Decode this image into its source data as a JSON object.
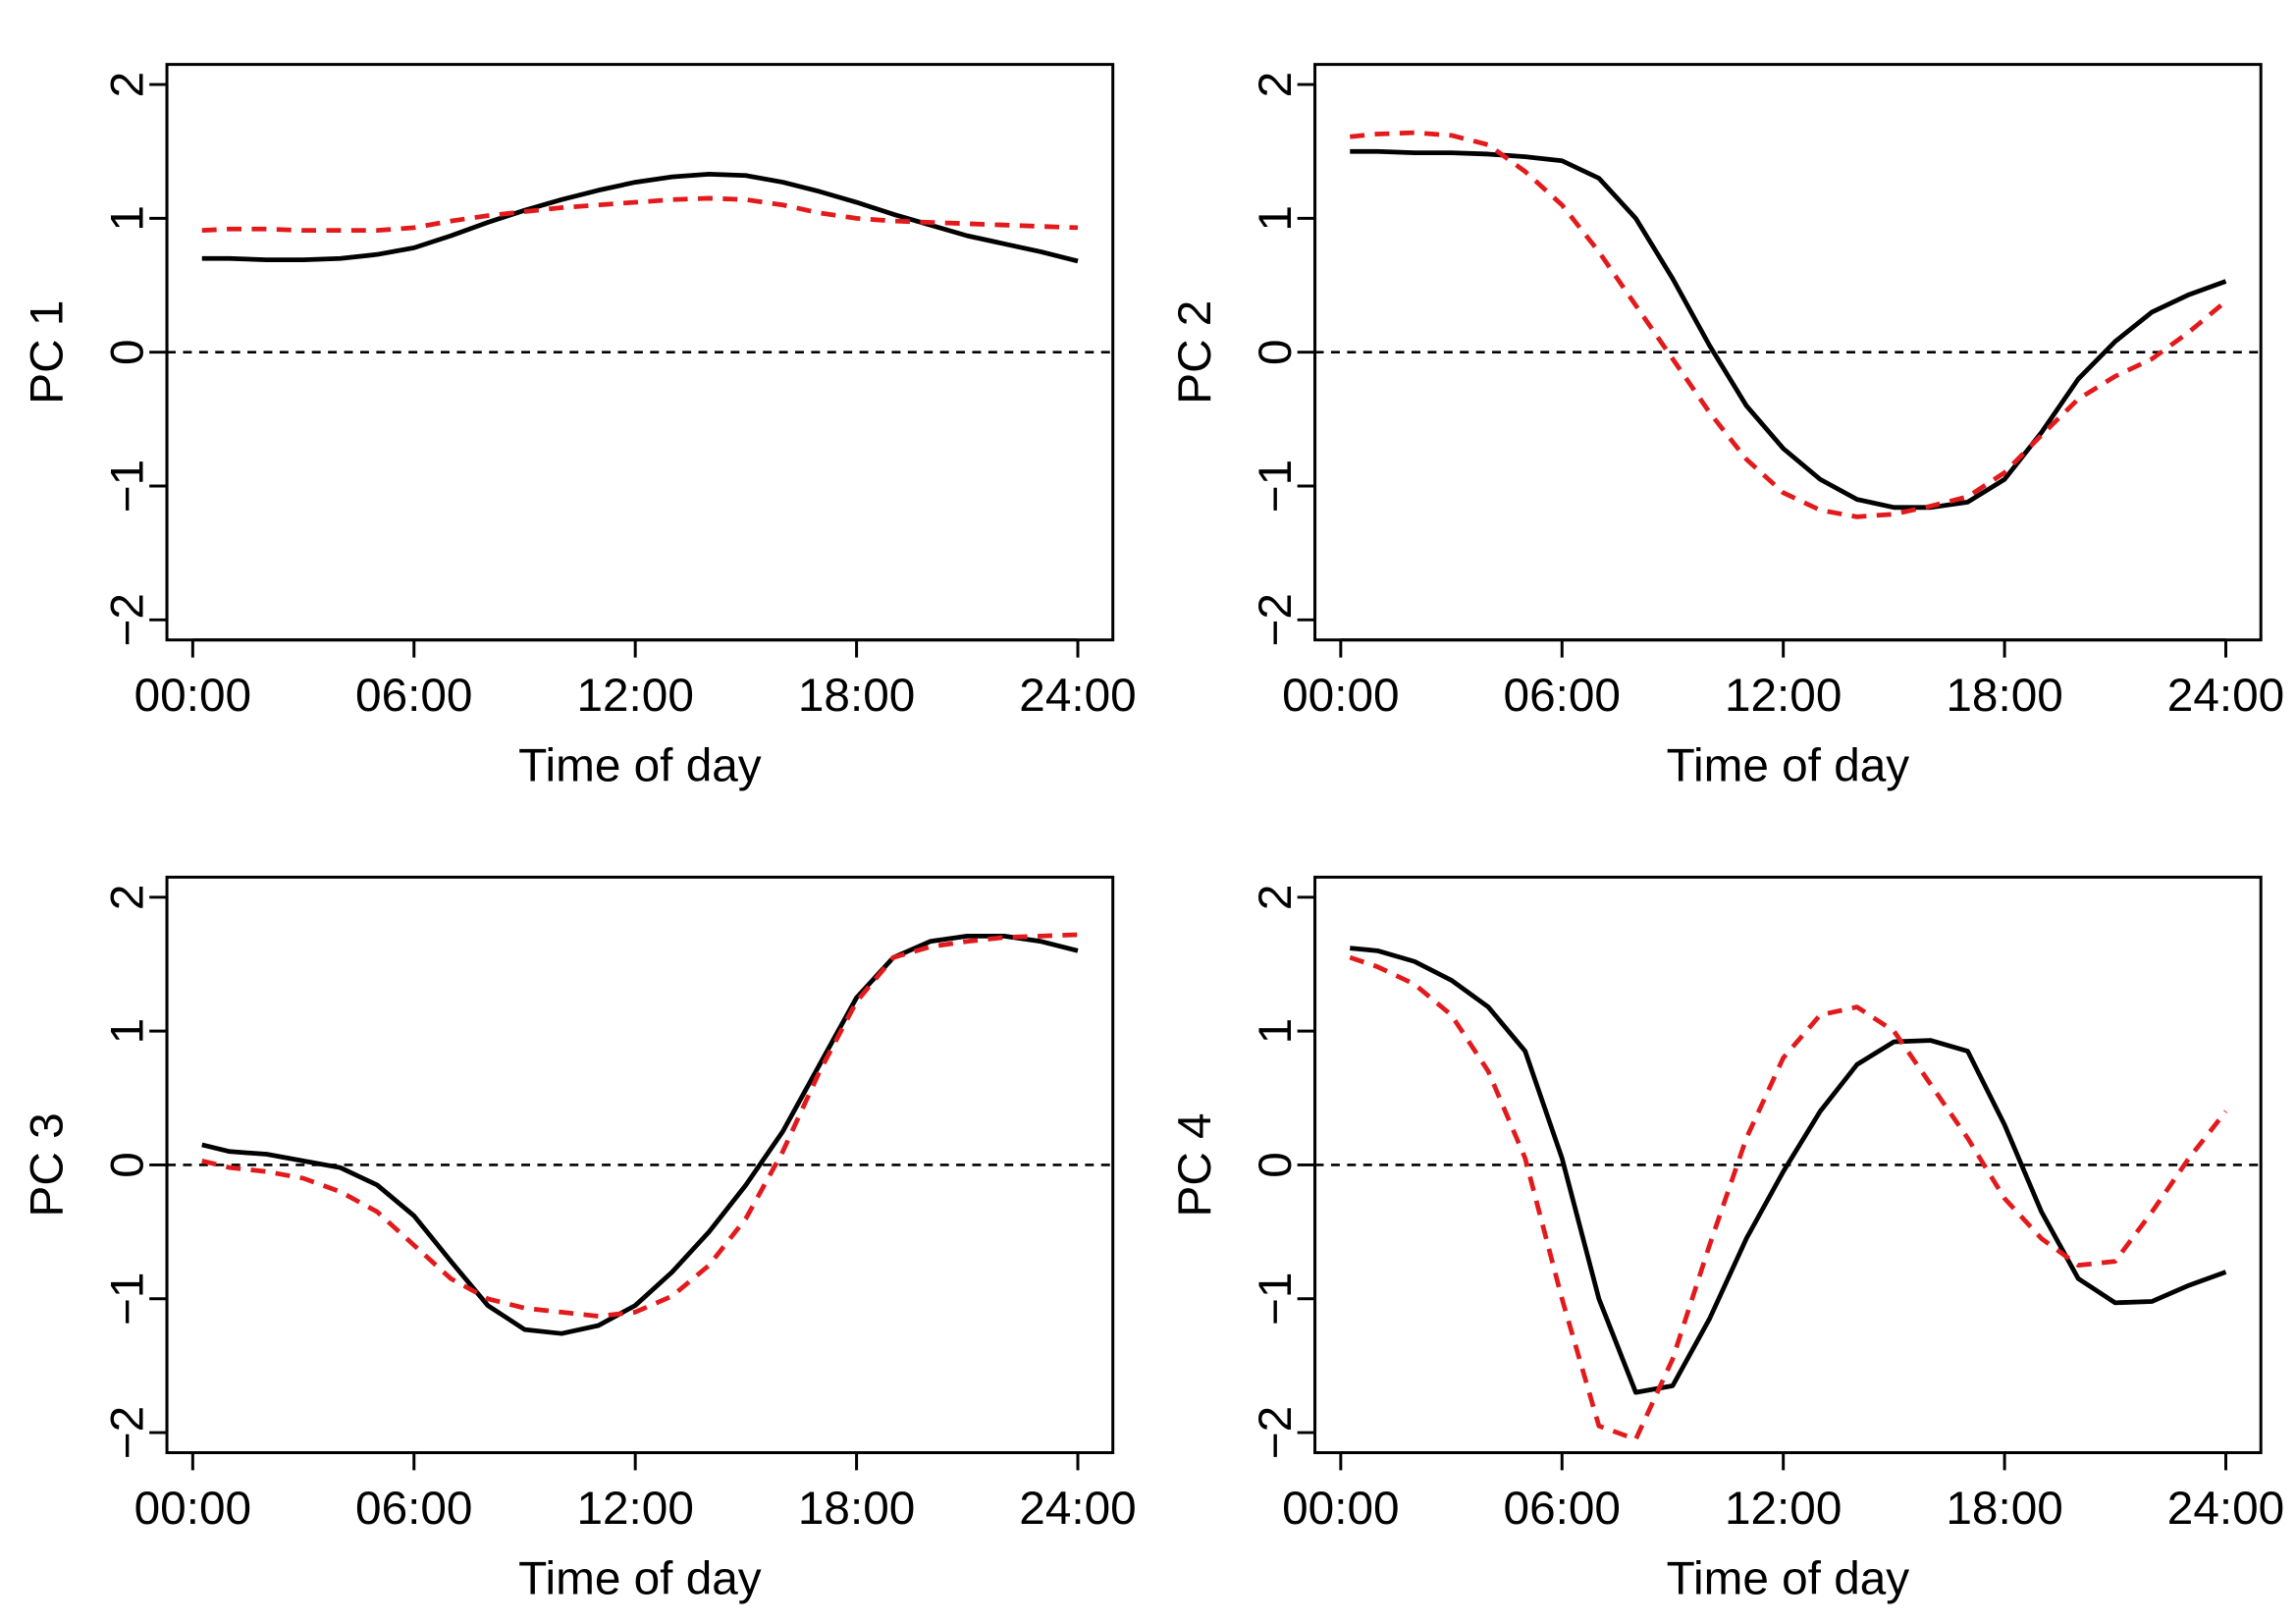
{
  "chart_data": [
    {
      "type": "line",
      "xlabel": "Time of day",
      "ylabel": "PC 1",
      "x": [
        0.25,
        1,
        2,
        3,
        4,
        5,
        6,
        7,
        8,
        9,
        10,
        11,
        12,
        13,
        14,
        15,
        16,
        17,
        18,
        19,
        20,
        21,
        22,
        23,
        24
      ],
      "series": [
        {
          "color": "#000000",
          "style": "solid",
          "values": [
            0.7,
            0.7,
            0.69,
            0.69,
            0.7,
            0.73,
            0.78,
            0.87,
            0.97,
            1.06,
            1.14,
            1.21,
            1.27,
            1.31,
            1.33,
            1.32,
            1.27,
            1.2,
            1.12,
            1.03,
            0.95,
            0.87,
            0.81,
            0.75,
            0.68
          ]
        },
        {
          "color": "#e31a1c",
          "style": "dashed",
          "values": [
            0.91,
            0.92,
            0.92,
            0.91,
            0.91,
            0.91,
            0.93,
            0.98,
            1.02,
            1.05,
            1.08,
            1.1,
            1.12,
            1.14,
            1.15,
            1.14,
            1.1,
            1.04,
            1.0,
            0.98,
            0.97,
            0.96,
            0.95,
            0.94,
            0.93
          ]
        }
      ],
      "hline": 0,
      "xlim": [
        -0.7,
        24.95
      ],
      "ylim": [
        -2.15,
        2.15
      ],
      "xticks": [
        {
          "value": 0,
          "label": "00:00"
        },
        {
          "value": 6,
          "label": "06:00"
        },
        {
          "value": 12,
          "label": "12:00"
        },
        {
          "value": 18,
          "label": "18:00"
        },
        {
          "value": 24,
          "label": "24:00"
        }
      ],
      "yticks": [
        {
          "value": -2,
          "label": "−2"
        },
        {
          "value": -1,
          "label": "−1"
        },
        0,
        1,
        2
      ]
    },
    {
      "type": "line",
      "xlabel": "Time of day",
      "ylabel": "PC 2",
      "x": [
        0.25,
        1,
        2,
        3,
        4,
        5,
        6,
        7,
        8,
        9,
        10,
        11,
        12,
        13,
        14,
        15,
        16,
        17,
        18,
        19,
        20,
        21,
        22,
        23,
        24
      ],
      "series": [
        {
          "color": "#000000",
          "style": "solid",
          "values": [
            1.5,
            1.5,
            1.49,
            1.49,
            1.48,
            1.46,
            1.43,
            1.3,
            1.0,
            0.55,
            0.05,
            -0.4,
            -0.72,
            -0.95,
            -1.1,
            -1.16,
            -1.16,
            -1.12,
            -0.95,
            -0.6,
            -0.2,
            0.08,
            0.3,
            0.43,
            0.53
          ]
        },
        {
          "color": "#e31a1c",
          "style": "dashed",
          "values": [
            1.61,
            1.63,
            1.64,
            1.62,
            1.55,
            1.35,
            1.1,
            0.75,
            0.35,
            -0.05,
            -0.45,
            -0.8,
            -1.05,
            -1.18,
            -1.23,
            -1.21,
            -1.15,
            -1.08,
            -0.9,
            -0.62,
            -0.35,
            -0.18,
            -0.05,
            0.15,
            0.38
          ]
        }
      ],
      "hline": 0,
      "xlim": [
        -0.7,
        24.95
      ],
      "ylim": [
        -2.15,
        2.15
      ],
      "xticks": [
        {
          "value": 0,
          "label": "00:00"
        },
        {
          "value": 6,
          "label": "06:00"
        },
        {
          "value": 12,
          "label": "12:00"
        },
        {
          "value": 18,
          "label": "18:00"
        },
        {
          "value": 24,
          "label": "24:00"
        }
      ],
      "yticks": [
        {
          "value": -2,
          "label": "−2"
        },
        {
          "value": -1,
          "label": "−1"
        },
        0,
        1,
        2
      ]
    },
    {
      "type": "line",
      "xlabel": "Time of day",
      "ylabel": "PC 3",
      "x": [
        0.25,
        1,
        2,
        3,
        4,
        5,
        6,
        7,
        8,
        9,
        10,
        11,
        12,
        13,
        14,
        15,
        16,
        17,
        18,
        19,
        20,
        21,
        22,
        23,
        24
      ],
      "series": [
        {
          "color": "#000000",
          "style": "solid",
          "values": [
            0.15,
            0.1,
            0.08,
            0.03,
            -0.02,
            -0.15,
            -0.38,
            -0.72,
            -1.05,
            -1.23,
            -1.26,
            -1.2,
            -1.05,
            -0.8,
            -0.5,
            -0.15,
            0.25,
            0.75,
            1.25,
            1.55,
            1.67,
            1.71,
            1.71,
            1.67,
            1.6
          ]
        },
        {
          "color": "#e31a1c",
          "style": "dashed",
          "values": [
            0.03,
            -0.02,
            -0.05,
            -0.1,
            -0.2,
            -0.35,
            -0.6,
            -0.85,
            -1.0,
            -1.07,
            -1.1,
            -1.13,
            -1.1,
            -0.98,
            -0.75,
            -0.4,
            0.1,
            0.7,
            1.22,
            1.55,
            1.63,
            1.67,
            1.7,
            1.71,
            1.72
          ]
        }
      ],
      "hline": 0,
      "xlim": [
        -0.7,
        24.95
      ],
      "ylim": [
        -2.15,
        2.15
      ],
      "xticks": [
        {
          "value": 0,
          "label": "00:00"
        },
        {
          "value": 6,
          "label": "06:00"
        },
        {
          "value": 12,
          "label": "12:00"
        },
        {
          "value": 18,
          "label": "18:00"
        },
        {
          "value": 24,
          "label": "24:00"
        }
      ],
      "yticks": [
        {
          "value": -2,
          "label": "−2"
        },
        {
          "value": -1,
          "label": "−1"
        },
        0,
        1,
        2
      ]
    },
    {
      "type": "line",
      "xlabel": "Time of day",
      "ylabel": "PC 4",
      "x": [
        0.25,
        1,
        2,
        3,
        4,
        5,
        6,
        7,
        8,
        9,
        10,
        11,
        12,
        13,
        14,
        15,
        16,
        17,
        18,
        19,
        20,
        21,
        22,
        23,
        24
      ],
      "series": [
        {
          "color": "#000000",
          "style": "solid",
          "values": [
            1.62,
            1.6,
            1.52,
            1.38,
            1.18,
            0.85,
            0.05,
            -1.0,
            -1.7,
            -1.65,
            -1.15,
            -0.55,
            -0.05,
            0.4,
            0.75,
            0.92,
            0.93,
            0.85,
            0.3,
            -0.35,
            -0.85,
            -1.03,
            -1.02,
            -0.9,
            -0.8
          ]
        },
        {
          "color": "#e31a1c",
          "style": "dashed",
          "values": [
            1.55,
            1.48,
            1.35,
            1.12,
            0.7,
            0.05,
            -1.0,
            -1.95,
            -2.05,
            -1.45,
            -0.6,
            0.2,
            0.8,
            1.12,
            1.18,
            1.0,
            0.6,
            0.2,
            -0.25,
            -0.55,
            -0.75,
            -0.72,
            -0.35,
            0.05,
            0.4
          ]
        }
      ],
      "hline": 0,
      "xlim": [
        -0.7,
        24.95
      ],
      "ylim": [
        -2.15,
        2.15
      ],
      "xticks": [
        {
          "value": 0,
          "label": "00:00"
        },
        {
          "value": 6,
          "label": "06:00"
        },
        {
          "value": 12,
          "label": "12:00"
        },
        {
          "value": 18,
          "label": "18:00"
        },
        {
          "value": 24,
          "label": "24:00"
        }
      ],
      "yticks": [
        {
          "value": -2,
          "label": "−2"
        },
        {
          "value": -1,
          "label": "−1"
        },
        0,
        1,
        2
      ]
    }
  ]
}
